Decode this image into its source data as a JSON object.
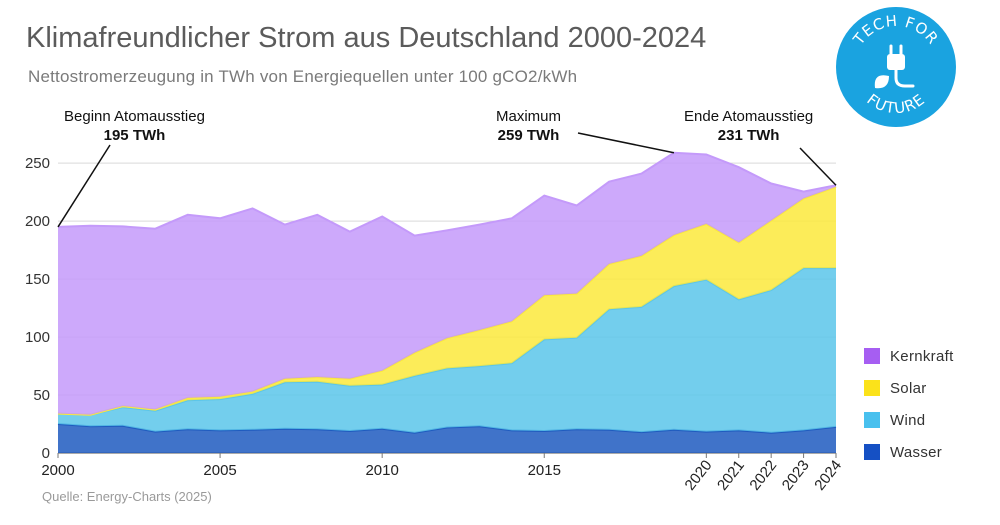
{
  "title": "Klimafreundlicher Strom aus Deutschland 2000-2024",
  "subtitle": "Nettostromerzeugung in TWh von Energiequellen unter 100 gCO2/kWh",
  "source": "Quelle: Energy-Charts (2025)",
  "logo": {
    "top_text": "TECH FOR",
    "bottom_text": "FUTURE",
    "color": "#1aa3e0",
    "icon": "plug-leaf-icon"
  },
  "annotations": [
    {
      "label": "Beginn Atomausstieg",
      "value": "195 TWh",
      "year": 2000,
      "twh": 195
    },
    {
      "label": "Maximum",
      "value": "259 TWh",
      "year": 2019,
      "twh": 259
    },
    {
      "label": "Ende Atomausstieg",
      "value": "231 TWh",
      "year": 2024,
      "twh": 231
    }
  ],
  "chart_data": {
    "type": "area",
    "stacked": true,
    "title": "Klimafreundlicher Strom aus Deutschland 2000-2024",
    "ylabel": "TWh",
    "ylim": [
      0,
      270
    ],
    "yticks": [
      0,
      50,
      100,
      150,
      200,
      250
    ],
    "x": [
      2000,
      2001,
      2002,
      2003,
      2004,
      2005,
      2006,
      2007,
      2008,
      2009,
      2010,
      2011,
      2012,
      2013,
      2014,
      2015,
      2016,
      2017,
      2018,
      2019,
      2020,
      2021,
      2022,
      2023,
      2024
    ],
    "xtick_labels": [
      "2000",
      "2005",
      "2010",
      "2015",
      "2020",
      "2021",
      "2022",
      "2023",
      "2024"
    ],
    "legend_position": "right",
    "series": [
      {
        "name": "Wasser",
        "color": "#1f5bbf",
        "values": [
          25,
          23,
          23.5,
          18.5,
          20.5,
          19.5,
          20,
          21,
          20.5,
          19,
          21,
          17.5,
          22,
          23,
          19.5,
          19,
          20.5,
          20,
          18,
          20,
          18.5,
          19.5,
          17.5,
          19.5,
          22.5
        ]
      },
      {
        "name": "Wind",
        "color": "#5bc5ea",
        "values": [
          9,
          10,
          16,
          18,
          25,
          27,
          31,
          40,
          41,
          39,
          38,
          49,
          51,
          52,
          58,
          79,
          79,
          104,
          108,
          124,
          131,
          113,
          123,
          140,
          137
        ]
      },
      {
        "name": "Solar",
        "color": "#fbe93c",
        "values": [
          0,
          0,
          1,
          1,
          2,
          2,
          2,
          3,
          4,
          6,
          12,
          20,
          26,
          31,
          36,
          38,
          38,
          39,
          44,
          44,
          48,
          49,
          60,
          60,
          70
        ]
      },
      {
        "name": "Kernkraft",
        "color": "#c49afa",
        "values": [
          161,
          163,
          155,
          156,
          158,
          154,
          158,
          133,
          140,
          127,
          133,
          101,
          93,
          91,
          89,
          86,
          76,
          71,
          71,
          71,
          60,
          65,
          32,
          6,
          1.5
        ]
      }
    ]
  }
}
